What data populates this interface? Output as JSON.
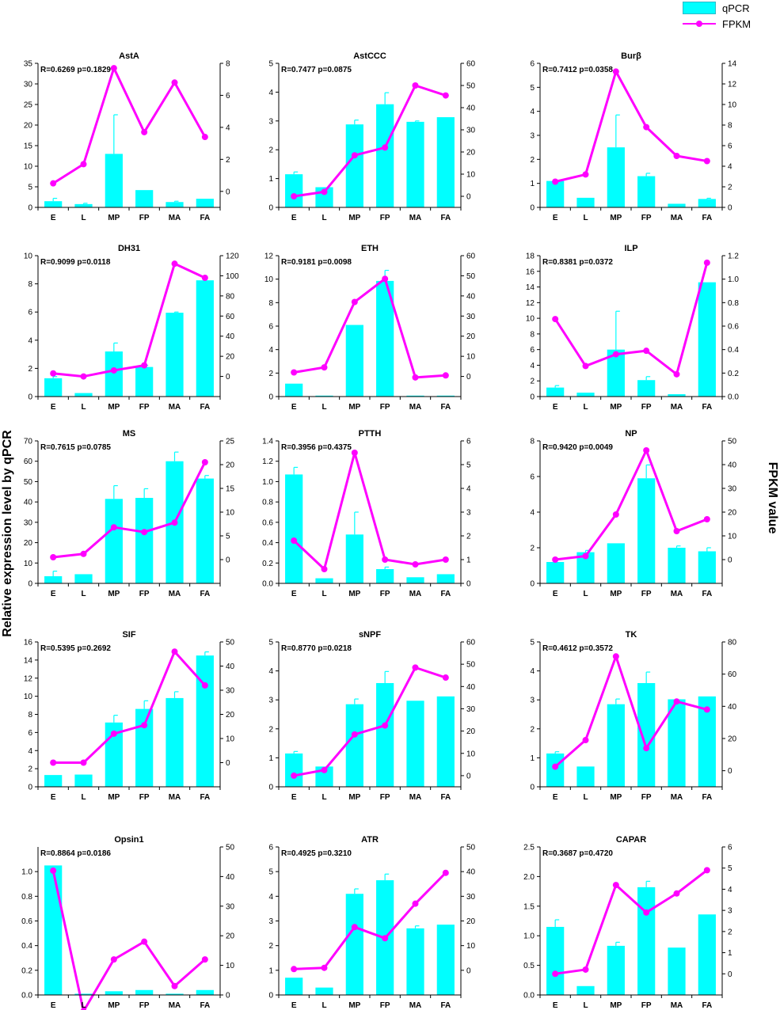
{
  "legend": {
    "qpcr_label": "qPCR",
    "fpkm_label": "FPKM"
  },
  "axis_labels": {
    "left": "Relative expression level  by qPCR",
    "right": "FPKM value"
  },
  "colors": {
    "bar": "#00ffff",
    "bar_edge": "#30b8c8",
    "line": "#ff00ff",
    "axis": "#000000"
  },
  "chart_data": [
    {
      "type": "bar+line",
      "title": "AstA",
      "stats": "R=0.6269 p=0.1829",
      "categories": [
        "E",
        "L",
        "MP",
        "FP",
        "MA",
        "FA"
      ],
      "series": [
        {
          "name": "qPCR",
          "axis": "left",
          "values": [
            1.5,
            0.8,
            13,
            4.2,
            1.3,
            2.1
          ],
          "errors": [
            0.7,
            0.2,
            9.5,
            0,
            0.2,
            0
          ]
        },
        {
          "name": "FPKM",
          "axis": "right",
          "values": [
            0.5,
            1.7,
            7.7,
            3.7,
            6.8,
            3.4
          ]
        }
      ],
      "ylim_left": [
        0,
        35
      ],
      "yticks_left": [
        0,
        5,
        10,
        15,
        20,
        25,
        30,
        35
      ],
      "ylim_right": [
        -1,
        8
      ],
      "yticks_right": [
        0,
        2,
        4,
        6,
        8
      ]
    },
    {
      "type": "bar+line",
      "title": "AstCCC",
      "stats": "R=0.7477 p=0.0875",
      "categories": [
        "E",
        "L",
        "MP",
        "FP",
        "MA",
        "FA"
      ],
      "series": [
        {
          "name": "qPCR",
          "axis": "left",
          "values": [
            1.15,
            0.7,
            2.88,
            3.58,
            2.97,
            3.13
          ],
          "errors": [
            0.08,
            0,
            0.15,
            0.4,
            0.03,
            0
          ]
        },
        {
          "name": "FPKM",
          "axis": "right",
          "values": [
            0,
            2,
            18.5,
            22,
            50,
            45.5
          ]
        }
      ],
      "ylim_left": [
        0,
        5
      ],
      "yticks_left": [
        0,
        1,
        2,
        3,
        4,
        5
      ],
      "ylim_right": [
        -5,
        60
      ],
      "yticks_right": [
        0,
        10,
        20,
        30,
        40,
        50,
        60
      ]
    },
    {
      "type": "bar+line",
      "title": "Burβ",
      "stats": "R=0.7412 p=0.0358",
      "categories": [
        "E",
        "L",
        "MP",
        "FP",
        "MA",
        "FA"
      ],
      "series": [
        {
          "name": "qPCR",
          "axis": "left",
          "values": [
            1.1,
            0.4,
            2.5,
            1.3,
            0.15,
            0.35
          ],
          "errors": [
            0,
            0,
            1.35,
            0.12,
            0,
            0.03
          ]
        },
        {
          "name": "FPKM",
          "axis": "right",
          "values": [
            2.5,
            3.2,
            13.2,
            7.8,
            5,
            4.5
          ]
        }
      ],
      "ylim_left": [
        0,
        6
      ],
      "yticks_left": [
        0,
        1,
        2,
        3,
        4,
        5,
        6
      ],
      "ylim_right": [
        0,
        14
      ],
      "yticks_right": [
        0,
        2,
        4,
        6,
        8,
        10,
        12,
        14
      ]
    },
    {
      "type": "bar+line",
      "title": "DH31",
      "stats": "R=0.9099 p=0.0118",
      "categories": [
        "E",
        "L",
        "MP",
        "FP",
        "MA",
        "FA"
      ],
      "series": [
        {
          "name": "qPCR",
          "axis": "left",
          "values": [
            1.3,
            0.25,
            3.2,
            2.1,
            5.95,
            8.25
          ],
          "errors": [
            0.12,
            0,
            0.6,
            0.12,
            0.05,
            0
          ]
        },
        {
          "name": "FPKM",
          "axis": "right",
          "values": [
            3,
            0,
            6,
            11,
            112,
            98
          ]
        }
      ],
      "ylim_left": [
        0,
        10
      ],
      "yticks_left": [
        0,
        2,
        4,
        6,
        8,
        10
      ],
      "ylim_right": [
        -20,
        120
      ],
      "yticks_right": [
        0,
        20,
        40,
        60,
        80,
        100,
        120
      ]
    },
    {
      "type": "bar+line",
      "title": "ETH",
      "stats": "R=0.9181 p=0.0098",
      "categories": [
        "E",
        "L",
        "MP",
        "FP",
        "MA",
        "FA"
      ],
      "series": [
        {
          "name": "qPCR",
          "axis": "left",
          "values": [
            1.1,
            0.08,
            6.1,
            9.85,
            0.08,
            0.08
          ],
          "errors": [
            0,
            0,
            0,
            0.9,
            0,
            0
          ]
        },
        {
          "name": "FPKM",
          "axis": "right",
          "values": [
            2,
            4.5,
            37,
            48.5,
            -0.5,
            0.5
          ]
        }
      ],
      "ylim_left": [
        0,
        12
      ],
      "yticks_left": [
        0,
        2,
        4,
        6,
        8,
        10,
        12
      ],
      "ylim_right": [
        -10,
        60
      ],
      "yticks_right": [
        0,
        10,
        20,
        30,
        40,
        50,
        60
      ]
    },
    {
      "type": "bar+line",
      "title": "ILP",
      "stats": "R=0.8381 p=0.0372",
      "categories": [
        "E",
        "L",
        "MP",
        "FP",
        "MA",
        "FA"
      ],
      "series": [
        {
          "name": "qPCR",
          "axis": "left",
          "values": [
            1.15,
            0.5,
            6,
            2.1,
            0.3,
            14.6
          ],
          "errors": [
            0.25,
            0,
            4.9,
            0.45,
            0,
            0
          ]
        },
        {
          "name": "FPKM",
          "axis": "right",
          "values": [
            0.66,
            0.26,
            0.36,
            0.39,
            0.19,
            1.14
          ]
        }
      ],
      "ylim_left": [
        0,
        18
      ],
      "yticks_left": [
        0,
        2,
        4,
        6,
        8,
        10,
        12,
        14,
        16,
        18
      ],
      "ylim_right": [
        0,
        1.2
      ],
      "yticks_right": [
        0.0,
        0.2,
        0.4,
        0.6,
        0.8,
        1.0,
        1.2
      ]
    },
    {
      "type": "bar+line",
      "title": "MS",
      "stats": "R=0.7615 p=0.0785",
      "categories": [
        "E",
        "L",
        "MP",
        "FP",
        "MA",
        "FA"
      ],
      "series": [
        {
          "name": "qPCR",
          "axis": "left",
          "values": [
            3.5,
            4.5,
            41.5,
            42,
            60,
            51.5
          ],
          "errors": [
            2.5,
            0,
            6.5,
            4.5,
            4.5,
            1.5
          ]
        },
        {
          "name": "FPKM",
          "axis": "right",
          "values": [
            0.5,
            1.2,
            6.8,
            5.8,
            7.8,
            20.5
          ]
        }
      ],
      "ylim_left": [
        0,
        70
      ],
      "yticks_left": [
        0,
        10,
        20,
        30,
        40,
        50,
        60,
        70
      ],
      "ylim_right": [
        -5,
        25
      ],
      "yticks_right": [
        0,
        5,
        10,
        15,
        20,
        25
      ]
    },
    {
      "type": "bar+line",
      "title": "PTTH",
      "stats": "R=0.3956 p=0.4375",
      "categories": [
        "E",
        "L",
        "MP",
        "FP",
        "MA",
        "FA"
      ],
      "series": [
        {
          "name": "qPCR",
          "axis": "left",
          "values": [
            1.07,
            0.05,
            0.48,
            0.14,
            0.06,
            0.09
          ],
          "errors": [
            0.07,
            0,
            0.22,
            0.02,
            0,
            0
          ]
        },
        {
          "name": "FPKM",
          "axis": "right",
          "values": [
            1.8,
            0.6,
            5.5,
            1,
            0.8,
            1
          ]
        }
      ],
      "ylim_left": [
        0,
        1.4
      ],
      "yticks_left": [
        0.0,
        0.2,
        0.4,
        0.6,
        0.8,
        1.0,
        1.2,
        1.4
      ],
      "ylim_right": [
        0,
        6
      ],
      "yticks_right": [
        0,
        1,
        2,
        3,
        4,
        5,
        6
      ]
    },
    {
      "type": "bar+line",
      "title": "NP",
      "stats": "R=0.9420 p=0.0049",
      "categories": [
        "E",
        "L",
        "MP",
        "FP",
        "MA",
        "FA"
      ],
      "series": [
        {
          "name": "qPCR",
          "axis": "left",
          "values": [
            1.2,
            1.75,
            2.25,
            5.9,
            2,
            1.8
          ],
          "errors": [
            0,
            0.1,
            0,
            0.75,
            0.1,
            0.2
          ]
        },
        {
          "name": "FPKM",
          "axis": "right",
          "values": [
            0,
            1.5,
            19,
            46,
            12,
            17
          ]
        }
      ],
      "ylim_left": [
        0,
        8
      ],
      "yticks_left": [
        0,
        2,
        4,
        6,
        8
      ],
      "ylim_right": [
        -10,
        50
      ],
      "yticks_right": [
        0,
        10,
        20,
        30,
        40,
        50
      ]
    },
    {
      "type": "bar+line",
      "title": "SIF",
      "stats": "R=0.5395 p=0.2692",
      "categories": [
        "E",
        "L",
        "MP",
        "FP",
        "MA",
        "FA"
      ],
      "series": [
        {
          "name": "qPCR",
          "axis": "left",
          "values": [
            1.3,
            1.35,
            7.1,
            8.6,
            9.8,
            14.5
          ],
          "errors": [
            0,
            0,
            0.8,
            0.9,
            0.7,
            0.4
          ]
        },
        {
          "name": "FPKM",
          "axis": "right",
          "values": [
            0,
            0,
            12,
            15.5,
            46,
            32
          ]
        }
      ],
      "ylim_left": [
        0,
        16
      ],
      "yticks_left": [
        0,
        2,
        4,
        6,
        8,
        10,
        12,
        14,
        16
      ],
      "ylim_right": [
        -10,
        50
      ],
      "yticks_right": [
        0,
        10,
        20,
        30,
        40,
        50
      ]
    },
    {
      "type": "bar+line",
      "title": "sNPF",
      "stats": "R=0.8770 p=0.0218",
      "categories": [
        "E",
        "L",
        "MP",
        "FP",
        "MA",
        "FA"
      ],
      "series": [
        {
          "name": "qPCR",
          "axis": "left",
          "values": [
            1.15,
            0.7,
            2.85,
            3.58,
            2.97,
            3.12
          ],
          "errors": [
            0.07,
            0,
            0.18,
            0.4,
            0,
            0
          ]
        },
        {
          "name": "FPKM",
          "axis": "right",
          "values": [
            0,
            2.5,
            18.5,
            22.5,
            48.5,
            44
          ]
        }
      ],
      "ylim_left": [
        0,
        5
      ],
      "yticks_left": [
        0,
        1,
        2,
        3,
        4,
        5
      ],
      "ylim_right": [
        -5,
        60
      ],
      "yticks_right": [
        0,
        10,
        20,
        30,
        40,
        50,
        60
      ]
    },
    {
      "type": "bar+line",
      "title": "TK",
      "stats": "R=0.4612 p=0.3572",
      "categories": [
        "E",
        "L",
        "MP",
        "FP",
        "MA",
        "FA"
      ],
      "series": [
        {
          "name": "qPCR",
          "axis": "left",
          "values": [
            1.15,
            0.7,
            2.85,
            3.58,
            3.02,
            3.12
          ],
          "errors": [
            0.06,
            0,
            0.18,
            0.38,
            0,
            0
          ]
        },
        {
          "name": "FPKM",
          "axis": "right",
          "values": [
            2.5,
            19,
            71,
            14,
            43,
            38
          ]
        }
      ],
      "ylim_left": [
        0,
        5
      ],
      "yticks_left": [
        0,
        1,
        2,
        3,
        4,
        5
      ],
      "ylim_right": [
        -10,
        80
      ],
      "yticks_right": [
        0,
        20,
        40,
        60,
        80
      ]
    },
    {
      "type": "bar+line",
      "title": "Opsin1",
      "stats": "R=0.8864 p=0.0186",
      "categories": [
        "E",
        "L",
        "MP",
        "FP",
        "MA",
        "FA"
      ],
      "series": [
        {
          "name": "qPCR",
          "axis": "left",
          "values": [
            1.05,
            0.01,
            0.03,
            0.04,
            0.01,
            0.04
          ],
          "errors": [
            0,
            0,
            0,
            0,
            0,
            0
          ]
        },
        {
          "name": "FPKM",
          "axis": "right",
          "values": [
            42,
            -5.5,
            12,
            18,
            3,
            12
          ]
        }
      ],
      "ylim_left": [
        0,
        1.2
      ],
      "yticks_left": [
        0.0,
        0.2,
        0.4,
        0.6,
        0.8,
        1.0
      ],
      "ylim_right": [
        0,
        50
      ],
      "yticks_right": [
        0,
        10,
        20,
        30,
        40,
        50
      ]
    },
    {
      "type": "bar+line",
      "title": "ATR",
      "stats": "R=0.4925 p=0.3210",
      "categories": [
        "E",
        "L",
        "MP",
        "FP",
        "MA",
        "FA"
      ],
      "series": [
        {
          "name": "qPCR",
          "axis": "left",
          "values": [
            0.7,
            0.3,
            4.1,
            4.65,
            2.7,
            2.85
          ],
          "errors": [
            0,
            0,
            0.2,
            0.25,
            0.1,
            0
          ]
        },
        {
          "name": "FPKM",
          "axis": "right",
          "values": [
            0.5,
            1,
            17.5,
            13,
            27,
            39.5
          ]
        }
      ],
      "ylim_left": [
        0,
        6
      ],
      "yticks_left": [
        0,
        1,
        2,
        3,
        4,
        5,
        6
      ],
      "ylim_right": [
        -10,
        50
      ],
      "yticks_right": [
        0,
        10,
        20,
        30,
        40,
        50
      ]
    },
    {
      "type": "bar+line",
      "title": "CAPAR",
      "stats": "R=0.3687 p=0.4720",
      "categories": [
        "E",
        "L",
        "MP",
        "FP",
        "MA",
        "FA"
      ],
      "series": [
        {
          "name": "qPCR",
          "axis": "left",
          "values": [
            1.15,
            0.15,
            0.83,
            1.82,
            0.8,
            1.36
          ],
          "errors": [
            0.12,
            0,
            0.06,
            0.1,
            0,
            0
          ]
        },
        {
          "name": "FPKM",
          "axis": "right",
          "values": [
            0,
            0.2,
            4.2,
            2.9,
            3.8,
            4.9
          ]
        }
      ],
      "ylim_left": [
        0,
        2.5
      ],
      "yticks_left": [
        0.0,
        0.5,
        1.0,
        1.5,
        2.0,
        2.5
      ],
      "ylim_right": [
        -1,
        6
      ],
      "yticks_right": [
        0,
        1,
        2,
        3,
        4,
        5,
        6
      ]
    }
  ]
}
